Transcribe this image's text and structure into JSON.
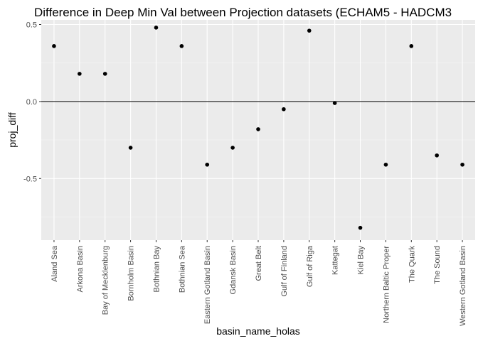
{
  "chart_data": {
    "type": "scatter",
    "title": "Difference in Deep Min Val between Projection datasets (ECHAM5 - HADCM3",
    "xlabel": "basin_name_holas",
    "ylabel": "proj_diff",
    "categories": [
      "Aland Sea",
      "Arkona Basin",
      "Bay of Mecklenburg",
      "Bornholm Basin",
      "Bothnian Bay",
      "Bothnian Sea",
      "Eastern Gotland Basin",
      "Gdansk Basin",
      "Great Belt",
      "Gulf of Finland",
      "Gulf of Riga",
      "Kattegat",
      "Kiel Bay",
      "Northern Baltic Proper",
      "The Quark",
      "The Sound",
      "Western Gotland Basin"
    ],
    "values": [
      0.36,
      0.18,
      0.18,
      -0.3,
      0.48,
      0.36,
      -0.41,
      -0.3,
      -0.18,
      -0.05,
      0.46,
      -0.01,
      -0.82,
      -0.41,
      0.36,
      -0.35,
      -0.41
    ],
    "ylim": [
      -0.9,
      0.53
    ],
    "yticks": [
      -0.5,
      0.0,
      0.5
    ],
    "ytick_labels": [
      "-0.5",
      "0.0",
      "0.5"
    ],
    "reference_line_y": 0,
    "grid": true,
    "colors": {
      "panel_background": "#ebebeb",
      "grid_major": "#ffffff",
      "points": "#000000",
      "reference_line": "#000000"
    }
  }
}
